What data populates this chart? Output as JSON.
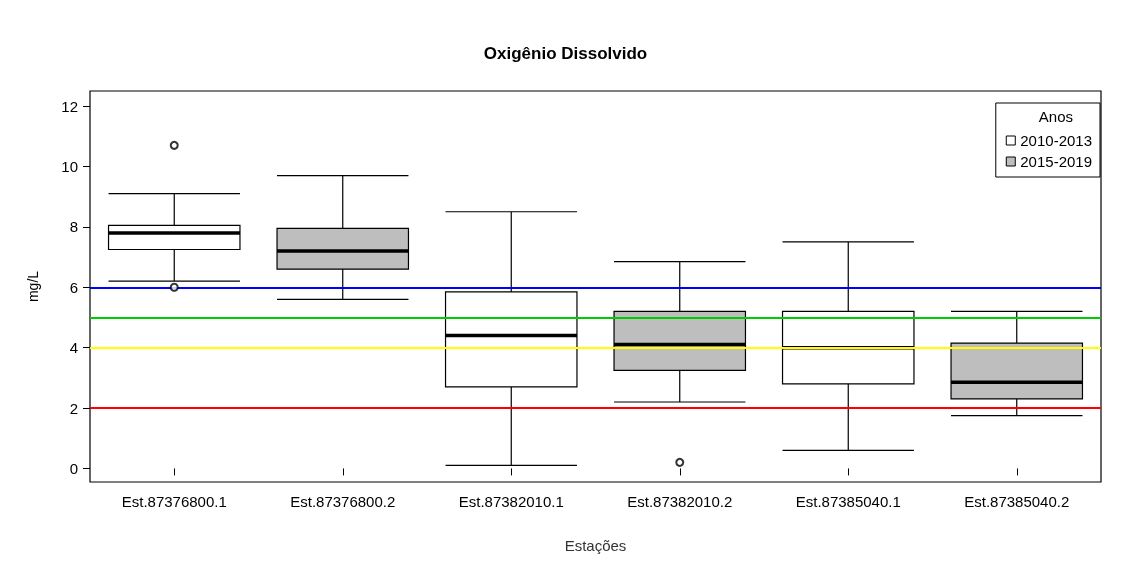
{
  "chart_data": {
    "type": "box",
    "title": "Oxigênio Dissolvido",
    "xlabel": "Estações",
    "ylabel": "mg/L",
    "legend_title": "Anos",
    "legend": "top right",
    "grid": false,
    "categories": [
      "Est.87376800.1",
      "Est.87376800.2",
      "Est.87382010.1",
      "Est.87382010.2",
      "Est.87385040.1",
      "Est.87385040.2"
    ],
    "ylim": [
      -0.45,
      12.5
    ],
    "yticks": [
      0,
      2,
      4,
      6,
      8,
      10,
      12
    ],
    "series": [
      {
        "name": "2010-2013",
        "color": "#ffffff",
        "boxes": [
          {
            "low": 6.2,
            "q1": 7.25,
            "median": 7.8,
            "q3": 8.05,
            "high": 9.1,
            "outliers": [
              10.7,
              6.0
            ]
          },
          null,
          {
            "low": 0.1,
            "q1": 2.7,
            "median": 4.4,
            "q3": 5.85,
            "high": 8.5
          },
          null,
          {
            "low": 0.6,
            "q1": 2.8,
            "median": 4.0,
            "q3": 5.2,
            "high": 7.5
          },
          null
        ]
      },
      {
        "name": "2015-2019",
        "color": "#bebebe",
        "boxes": [
          null,
          {
            "low": 5.6,
            "q1": 6.6,
            "median": 7.2,
            "q3": 7.95,
            "high": 9.7
          },
          null,
          {
            "low": 2.2,
            "q1": 3.25,
            "median": 4.1,
            "q3": 5.2,
            "high": 6.85,
            "outliers": [
              0.2
            ]
          },
          null,
          {
            "low": 1.75,
            "q1": 2.3,
            "median": 2.85,
            "q3": 4.15,
            "high": 5.2
          }
        ]
      }
    ],
    "ref_lines": [
      {
        "axis": "y",
        "value": 6,
        "color": "#0000ff"
      },
      {
        "axis": "y",
        "value": 5,
        "color": "#00cc00"
      },
      {
        "axis": "y",
        "value": 4,
        "color": "#ffff00"
      },
      {
        "axis": "y",
        "value": 2,
        "color": "#ff0000"
      }
    ]
  }
}
